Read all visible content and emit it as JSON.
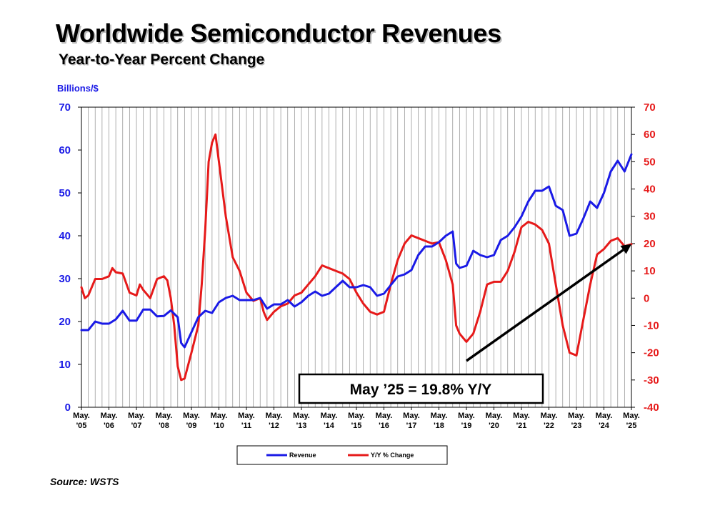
{
  "header": {
    "title": "Worldwide Semiconductor Revenues",
    "subtitle": "Year-to-Year Percent Change"
  },
  "source": "Source: WSTS",
  "colors": {
    "revenue": "#1a1ae6",
    "yoy": "#e61a1a",
    "grid": "#9a9a9a",
    "arrow": "#000000"
  },
  "annotation": "May ’25 = 19.8% Y/Y",
  "chart_data": {
    "type": "line",
    "y_left_label": "Billions/$",
    "y_left_range": [
      0,
      70
    ],
    "y_left_ticks": [
      0,
      10,
      20,
      30,
      40,
      50,
      60,
      70
    ],
    "y_right_range": [
      -40,
      70
    ],
    "y_right_ticks": [
      -40,
      -30,
      -20,
      -10,
      0,
      10,
      20,
      30,
      40,
      50,
      60,
      70
    ],
    "grid": "vertical",
    "legend_position": "bottom",
    "x_range": [
      2005.375,
      2025.375
    ],
    "x_ticks": [
      {
        "x": 2005.375,
        "line1": "May.",
        "line2": "'05"
      },
      {
        "x": 2006.375,
        "line1": "May.",
        "line2": "'06"
      },
      {
        "x": 2007.375,
        "line1": "May.",
        "line2": "'07"
      },
      {
        "x": 2008.375,
        "line1": "May.",
        "line2": "'08"
      },
      {
        "x": 2009.375,
        "line1": "May.",
        "line2": "'09"
      },
      {
        "x": 2010.375,
        "line1": "May.",
        "line2": "'10"
      },
      {
        "x": 2011.375,
        "line1": "May.",
        "line2": "'11"
      },
      {
        "x": 2012.375,
        "line1": "May.",
        "line2": "'12"
      },
      {
        "x": 2013.375,
        "line1": "May.",
        "line2": "'13"
      },
      {
        "x": 2014.375,
        "line1": "May.",
        "line2": "'14"
      },
      {
        "x": 2015.375,
        "line1": "May.",
        "line2": "'15"
      },
      {
        "x": 2016.375,
        "line1": "May.",
        "line2": "'16"
      },
      {
        "x": 2017.375,
        "line1": "May.",
        "line2": "'17"
      },
      {
        "x": 2018.375,
        "line1": "May.",
        "line2": "'18"
      },
      {
        "x": 2019.375,
        "line1": "May.",
        "line2": "'19"
      },
      {
        "x": 2020.375,
        "line1": "May.",
        "line2": "'20"
      },
      {
        "x": 2021.375,
        "line1": "May.",
        "line2": "'21"
      },
      {
        "x": 2022.375,
        "line1": "May.",
        "line2": "'22"
      },
      {
        "x": 2023.375,
        "line1": "May.",
        "line2": "'23"
      },
      {
        "x": 2024.375,
        "line1": "May.",
        "line2": "'24"
      },
      {
        "x": 2025.375,
        "line1": "May.",
        "line2": "'25"
      }
    ],
    "series": [
      {
        "name": "Revenue",
        "axis": "left",
        "points": [
          [
            2005.375,
            18
          ],
          [
            2005.625,
            18
          ],
          [
            2005.875,
            20
          ],
          [
            2006.125,
            19.5
          ],
          [
            2006.375,
            19.5
          ],
          [
            2006.625,
            20.5
          ],
          [
            2006.875,
            22.5
          ],
          [
            2007.125,
            20.2
          ],
          [
            2007.375,
            20.2
          ],
          [
            2007.625,
            22.8
          ],
          [
            2007.875,
            22.8
          ],
          [
            2008.125,
            21.2
          ],
          [
            2008.375,
            21.3
          ],
          [
            2008.625,
            22.6
          ],
          [
            2008.875,
            21
          ],
          [
            2009.0,
            15
          ],
          [
            2009.125,
            14
          ],
          [
            2009.375,
            17.5
          ],
          [
            2009.625,
            21
          ],
          [
            2009.875,
            22.5
          ],
          [
            2010.125,
            22
          ],
          [
            2010.375,
            24.5
          ],
          [
            2010.625,
            25.5
          ],
          [
            2010.875,
            26
          ],
          [
            2011.125,
            25
          ],
          [
            2011.375,
            25
          ],
          [
            2011.625,
            25
          ],
          [
            2011.875,
            25.5
          ],
          [
            2012.125,
            23
          ],
          [
            2012.375,
            24
          ],
          [
            2012.625,
            24
          ],
          [
            2012.875,
            25
          ],
          [
            2013.125,
            23.5
          ],
          [
            2013.375,
            24.5
          ],
          [
            2013.625,
            26
          ],
          [
            2013.875,
            27
          ],
          [
            2014.125,
            26
          ],
          [
            2014.375,
            26.5
          ],
          [
            2014.625,
            28
          ],
          [
            2014.875,
            29.5
          ],
          [
            2015.125,
            28
          ],
          [
            2015.375,
            28
          ],
          [
            2015.625,
            28.5
          ],
          [
            2015.875,
            28
          ],
          [
            2016.125,
            26
          ],
          [
            2016.375,
            26.5
          ],
          [
            2016.625,
            28.5
          ],
          [
            2016.875,
            30.5
          ],
          [
            2017.125,
            31
          ],
          [
            2017.375,
            32
          ],
          [
            2017.625,
            35.5
          ],
          [
            2017.875,
            37.5
          ],
          [
            2018.125,
            37.5
          ],
          [
            2018.375,
            38.5
          ],
          [
            2018.625,
            40
          ],
          [
            2018.875,
            41
          ],
          [
            2019.0,
            33.5
          ],
          [
            2019.125,
            32.5
          ],
          [
            2019.375,
            33
          ],
          [
            2019.625,
            36.5
          ],
          [
            2019.875,
            35.5
          ],
          [
            2020.125,
            35
          ],
          [
            2020.375,
            35.5
          ],
          [
            2020.625,
            39
          ],
          [
            2020.875,
            40
          ],
          [
            2021.125,
            42
          ],
          [
            2021.375,
            44.5
          ],
          [
            2021.625,
            48
          ],
          [
            2021.875,
            50.5
          ],
          [
            2022.125,
            50.5
          ],
          [
            2022.375,
            51.5
          ],
          [
            2022.625,
            47
          ],
          [
            2022.875,
            46
          ],
          [
            2023.125,
            40
          ],
          [
            2023.375,
            40.5
          ],
          [
            2023.625,
            44
          ],
          [
            2023.875,
            48
          ],
          [
            2024.125,
            46.5
          ],
          [
            2024.375,
            50
          ],
          [
            2024.625,
            55
          ],
          [
            2024.875,
            57.5
          ],
          [
            2025.125,
            55
          ],
          [
            2025.375,
            59
          ]
        ]
      },
      {
        "name": "Y/Y % Change",
        "axis": "right",
        "points": [
          [
            2005.375,
            4
          ],
          [
            2005.5,
            0
          ],
          [
            2005.625,
            1
          ],
          [
            2005.875,
            7
          ],
          [
            2006.125,
            7
          ],
          [
            2006.375,
            8
          ],
          [
            2006.5,
            11
          ],
          [
            2006.625,
            9.5
          ],
          [
            2006.875,
            9
          ],
          [
            2007.125,
            2
          ],
          [
            2007.375,
            1
          ],
          [
            2007.5,
            5
          ],
          [
            2007.625,
            3
          ],
          [
            2007.875,
            0
          ],
          [
            2008.125,
            7
          ],
          [
            2008.375,
            8
          ],
          [
            2008.5,
            6.5
          ],
          [
            2008.625,
            0
          ],
          [
            2008.75,
            -10
          ],
          [
            2008.875,
            -25
          ],
          [
            2009.0,
            -30
          ],
          [
            2009.125,
            -29.5
          ],
          [
            2009.375,
            -20
          ],
          [
            2009.625,
            -10
          ],
          [
            2009.75,
            5
          ],
          [
            2009.875,
            25
          ],
          [
            2010.0,
            50
          ],
          [
            2010.125,
            57
          ],
          [
            2010.25,
            60
          ],
          [
            2010.375,
            50
          ],
          [
            2010.625,
            30
          ],
          [
            2010.875,
            15
          ],
          [
            2011.125,
            10
          ],
          [
            2011.375,
            2
          ],
          [
            2011.625,
            -1
          ],
          [
            2011.875,
            0
          ],
          [
            2012.0,
            -5
          ],
          [
            2012.125,
            -8
          ],
          [
            2012.375,
            -5
          ],
          [
            2012.625,
            -3
          ],
          [
            2012.875,
            -2
          ],
          [
            2013.125,
            1
          ],
          [
            2013.375,
            2
          ],
          [
            2013.625,
            5
          ],
          [
            2013.875,
            8
          ],
          [
            2014.125,
            12
          ],
          [
            2014.375,
            11
          ],
          [
            2014.625,
            10
          ],
          [
            2014.875,
            9
          ],
          [
            2015.125,
            7
          ],
          [
            2015.375,
            2
          ],
          [
            2015.625,
            -2
          ],
          [
            2015.875,
            -5
          ],
          [
            2016.125,
            -6
          ],
          [
            2016.375,
            -5
          ],
          [
            2016.625,
            5
          ],
          [
            2016.875,
            14
          ],
          [
            2017.125,
            20
          ],
          [
            2017.375,
            23
          ],
          [
            2017.625,
            22
          ],
          [
            2017.875,
            21
          ],
          [
            2018.125,
            20
          ],
          [
            2018.375,
            20.5
          ],
          [
            2018.625,
            14
          ],
          [
            2018.875,
            5
          ],
          [
            2019.0,
            -10
          ],
          [
            2019.125,
            -13
          ],
          [
            2019.375,
            -16
          ],
          [
            2019.625,
            -13
          ],
          [
            2019.875,
            -5
          ],
          [
            2020.125,
            5
          ],
          [
            2020.375,
            6
          ],
          [
            2020.625,
            6
          ],
          [
            2020.875,
            10
          ],
          [
            2021.125,
            17
          ],
          [
            2021.375,
            26
          ],
          [
            2021.625,
            28
          ],
          [
            2021.875,
            27
          ],
          [
            2022.125,
            25
          ],
          [
            2022.375,
            20
          ],
          [
            2022.625,
            5
          ],
          [
            2022.875,
            -10
          ],
          [
            2023.125,
            -20
          ],
          [
            2023.375,
            -21
          ],
          [
            2023.625,
            -8
          ],
          [
            2023.875,
            5
          ],
          [
            2024.125,
            16
          ],
          [
            2024.375,
            18
          ],
          [
            2024.625,
            21
          ],
          [
            2024.875,
            22
          ],
          [
            2025.125,
            19
          ],
          [
            2025.375,
            19.8
          ]
        ]
      }
    ],
    "arrow": {
      "axis": "right",
      "from": [
        2019.375,
        -23
      ],
      "to": [
        2025.375,
        19.8
      ]
    }
  }
}
